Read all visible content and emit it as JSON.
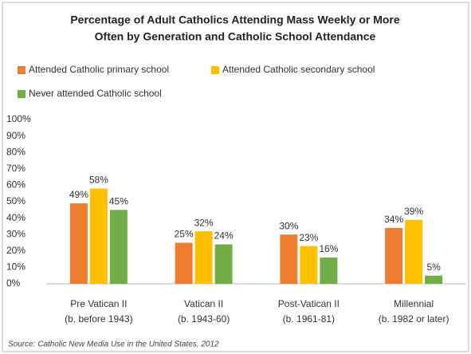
{
  "chart_data": {
    "type": "bar",
    "title": [
      "Percentage of Adult Catholics Attending Mass Weekly or More",
      "Often by Generation and Catholic School Attendance"
    ],
    "categories": [
      [
        "Pre Vatican II",
        "(b. before 1943)"
      ],
      [
        "Vatican II",
        "(b. 1943-60)"
      ],
      [
        "Post-Vatican II",
        "(b. 1961-81)"
      ],
      [
        "Millennial",
        "(b. 1982 or later)"
      ]
    ],
    "series": [
      {
        "name": "Attended Catholic primary school",
        "color": "#ed7d31",
        "values": [
          49,
          25,
          30,
          34
        ],
        "value_labels": [
          "49%",
          "25%",
          "30%",
          "34%"
        ]
      },
      {
        "name": "Attended Catholic secondary school",
        "color": "#ffc000",
        "values": [
          58,
          32,
          23,
          39
        ],
        "value_labels": [
          "58%",
          "32%",
          "23%",
          "39%"
        ]
      },
      {
        "name": "Never attended Catholic school",
        "color": "#70ad47",
        "values": [
          45,
          24,
          16,
          5
        ],
        "value_labels": [
          "45%",
          "24%",
          "16%",
          "5%"
        ]
      }
    ],
    "ylim": [
      0,
      100
    ],
    "yticks": [
      {
        "value": 0,
        "label": "0%"
      },
      {
        "value": 10,
        "label": "10%"
      },
      {
        "value": 20,
        "label": "20%"
      },
      {
        "value": 30,
        "label": "30%"
      },
      {
        "value": 40,
        "label": "40%"
      },
      {
        "value": 50,
        "label": "50%"
      },
      {
        "value": 60,
        "label": "60%"
      },
      {
        "value": 70,
        "label": "70%"
      },
      {
        "value": 80,
        "label": "80%"
      },
      {
        "value": 90,
        "label": "90%"
      },
      {
        "value": 100,
        "label": "100%"
      }
    ],
    "grid": false,
    "source": "Source: Catholic New Media Use in the United States, 2012"
  }
}
